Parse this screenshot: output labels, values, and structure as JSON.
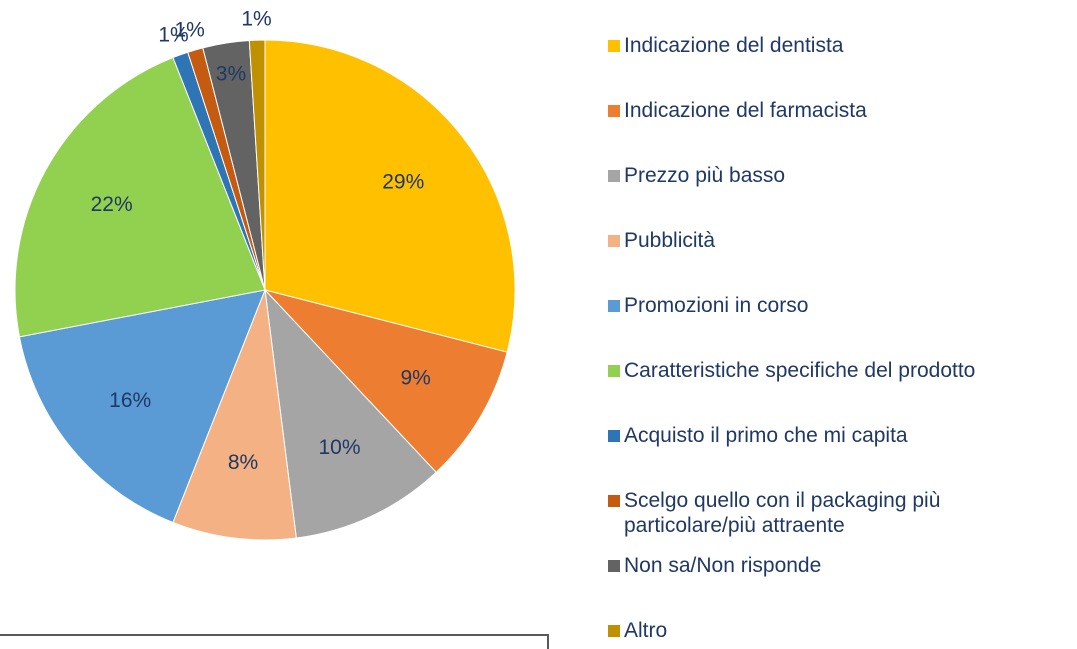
{
  "chart_data": {
    "type": "pie",
    "categories": [
      "Indicazione del dentista",
      "Indicazione del farmacista",
      "Prezzo più basso",
      "Pubblicità",
      "Promozioni in corso",
      "Caratteristiche specifiche del prodotto",
      "Acquisto il primo che mi capita",
      "Scelgo quello con il packaging più particolare/più attraente",
      "Non sa/Non risponde",
      "Altro"
    ],
    "values": [
      29,
      9,
      10,
      8,
      16,
      22,
      1,
      1,
      3,
      1
    ],
    "value_labels": [
      "29%",
      "9%",
      "10%",
      "8%",
      "16%",
      "22%",
      "1%",
      "1%",
      "3%",
      "1%"
    ],
    "colors": [
      "#FFC000",
      "#ED7D31",
      "#A5A5A5",
      "#F4B183",
      "#5B9BD5",
      "#92D050",
      "#2E75B6",
      "#C55A11",
      "#636363",
      "#BF9000"
    ],
    "legend": "right"
  }
}
